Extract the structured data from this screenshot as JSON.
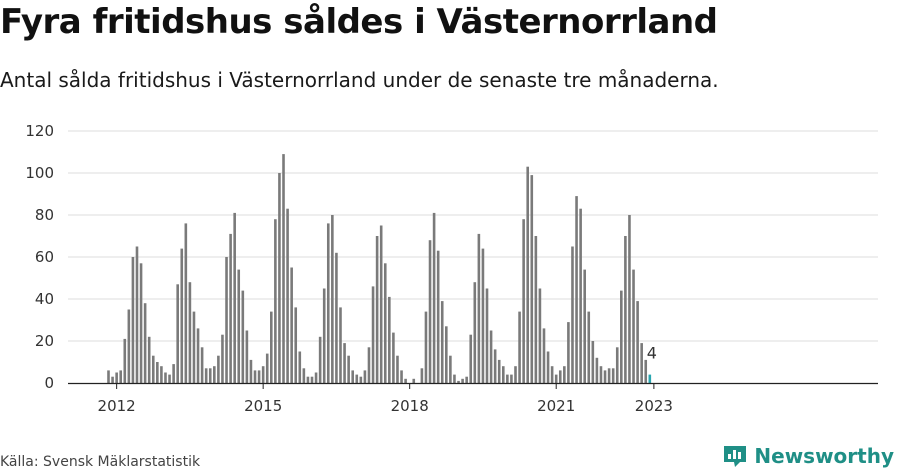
{
  "title": "Fyra fritidshus såldes i Västernorrland",
  "subtitle": "Antal sålda fritidshus i Västernorrland under de senaste tre månaderna.",
  "source": "Källa: Svensk Mäklarstatistik",
  "brand": {
    "name": "Newsworthy",
    "color": "#1f8f86",
    "icon": "newsworthy-logo-icon"
  },
  "colors": {
    "bar": "#7a7a7a",
    "highlight": "#29a6b0",
    "grid": "#dddddd",
    "axis": "#222222"
  },
  "chart_data": {
    "type": "bar",
    "title": "Fyra fritidshus såldes i Västernorrland",
    "subtitle": "Antal sålda fritidshus i Västernorrland under de senaste tre månaderna.",
    "xlabel": "",
    "ylabel": "",
    "ylim": [
      0,
      120
    ],
    "yticks": [
      0,
      20,
      40,
      60,
      80,
      100,
      120
    ],
    "xticks": [
      "2012",
      "2015",
      "2018",
      "2021",
      "2023"
    ],
    "grid": true,
    "series_start": "2011-11",
    "frequency": "monthly",
    "values": [
      6,
      3,
      5,
      6,
      21,
      35,
      60,
      65,
      57,
      38,
      22,
      13,
      10,
      8,
      5,
      4,
      9,
      47,
      64,
      76,
      48,
      34,
      26,
      17,
      7,
      7,
      8,
      13,
      23,
      60,
      71,
      81,
      54,
      44,
      25,
      11,
      6,
      6,
      8,
      14,
      34,
      78,
      100,
      109,
      83,
      55,
      36,
      15,
      7,
      3,
      3,
      5,
      22,
      45,
      76,
      80,
      62,
      36,
      19,
      13,
      6,
      4,
      3,
      6,
      17,
      46,
      70,
      75,
      57,
      41,
      24,
      13,
      6,
      2,
      0,
      2,
      0,
      7,
      34,
      68,
      81,
      63,
      39,
      27,
      13,
      4,
      1,
      2,
      3,
      23,
      48,
      71,
      64,
      45,
      25,
      16,
      11,
      8,
      4,
      4,
      8,
      34,
      78,
      103,
      99,
      70,
      45,
      26,
      15,
      8,
      4,
      6,
      8,
      29,
      65,
      89,
      83,
      54,
      34,
      20,
      12,
      8,
      6,
      7,
      7,
      17,
      44,
      70,
      80,
      54,
      39,
      19,
      11,
      4
    ],
    "highlight": {
      "label": "4",
      "value": 4
    }
  }
}
